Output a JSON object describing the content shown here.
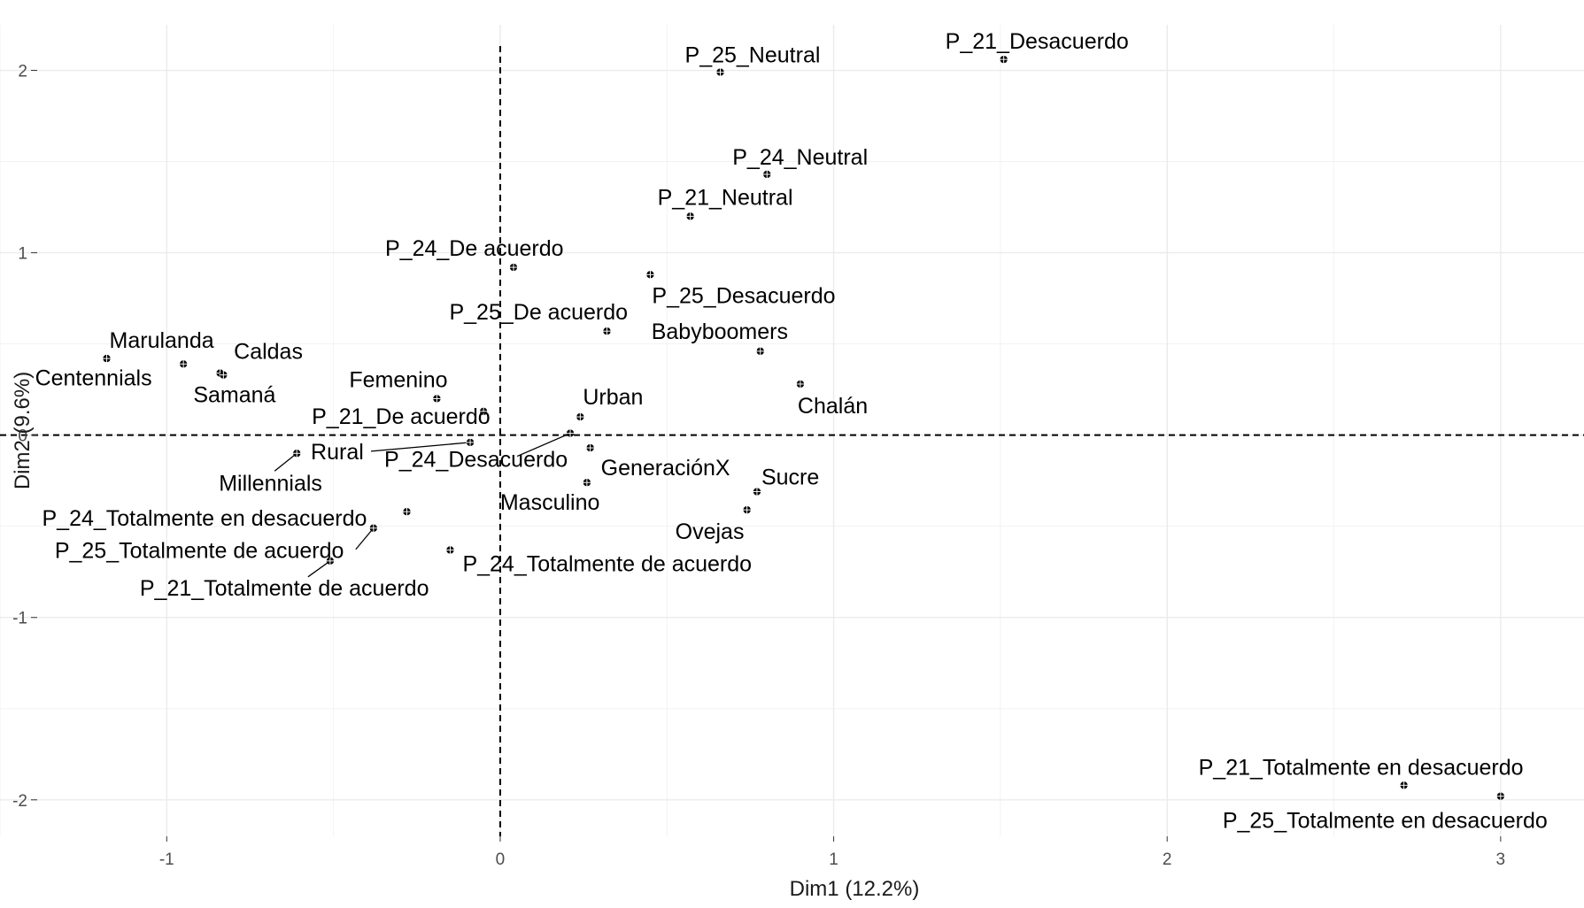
{
  "chart_data": {
    "type": "scatter",
    "title": "",
    "xlabel": "Dim1 (12.2%)",
    "ylabel": "Dim2 (9.6%)",
    "xlim": [
      -1.5,
      3.25
    ],
    "ylim": [
      -2.2,
      2.25
    ],
    "x_ticks": [
      -1,
      0,
      1,
      2,
      3
    ],
    "y_ticks": [
      -2,
      -1,
      0,
      1,
      2
    ],
    "grid": true,
    "reference_lines": {
      "x": 0,
      "y": 0,
      "style": "dashed"
    },
    "points": [
      {
        "label": "P_21_Desacuerdo",
        "x": 1.51,
        "y": 2.06
      },
      {
        "label": "P_25_Neutral",
        "x": 0.66,
        "y": 1.99
      },
      {
        "label": "P_24_Neutral",
        "x": 0.8,
        "y": 1.43
      },
      {
        "label": "P_21_Neutral",
        "x": 0.57,
        "y": 1.2
      },
      {
        "label": "P_24_De acuerdo",
        "x": 0.04,
        "y": 0.92
      },
      {
        "label": "P_25_Desacuerdo",
        "x": 0.45,
        "y": 0.88
      },
      {
        "label": "P_25_De acuerdo",
        "x": 0.32,
        "y": 0.57
      },
      {
        "label": "Babyboomers",
        "x": 0.78,
        "y": 0.46
      },
      {
        "label": "Chalán",
        "x": 0.9,
        "y": 0.28
      },
      {
        "label": "Marulanda",
        "x": -1.18,
        "y": 0.42
      },
      {
        "label": "Caldas",
        "x": -0.95,
        "y": 0.39
      },
      {
        "label": "Centennials",
        "x": -0.84,
        "y": 0.34
      },
      {
        "label": "Samaná",
        "x": -0.83,
        "y": 0.33
      },
      {
        "label": "Femenino",
        "x": -0.19,
        "y": 0.2
      },
      {
        "label": "P_21_De acuerdo",
        "x": -0.05,
        "y": 0.13
      },
      {
        "label": "Urban",
        "x": 0.24,
        "y": 0.1
      },
      {
        "label": "P_24_Desacuerdo",
        "x": 0.21,
        "y": 0.01
      },
      {
        "label": "GeneraciónX",
        "x": 0.27,
        "y": -0.07
      },
      {
        "label": "Rural",
        "x": -0.09,
        "y": -0.04
      },
      {
        "label": "Millennials",
        "x": -0.61,
        "y": -0.1
      },
      {
        "label": "Masculino",
        "x": 0.26,
        "y": -0.26
      },
      {
        "label": "Sucre",
        "x": 0.77,
        "y": -0.31
      },
      {
        "label": "Ovejas",
        "x": 0.74,
        "y": -0.41
      },
      {
        "label": "P_24_Totalmente en desacuerdo",
        "x": -0.28,
        "y": -0.42
      },
      {
        "label": "P_25_Totalmente de acuerdo",
        "x": -0.38,
        "y": -0.51
      },
      {
        "label": "P_21_Totalmente de acuerdo",
        "x": -0.51,
        "y": -0.69
      },
      {
        "label": "P_24_Totalmente de acuerdo",
        "x": -0.15,
        "y": -0.63
      },
      {
        "label": "P_21_Totalmente en desacuerdo",
        "x": 2.71,
        "y": -1.92
      },
      {
        "label": "P_25_Totalmente en desacuerdo",
        "x": 3.0,
        "y": -1.98
      }
    ]
  }
}
